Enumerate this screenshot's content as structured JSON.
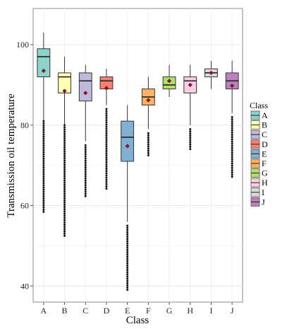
{
  "chart_data": {
    "type": "boxplot",
    "title": "",
    "xlabel": "Class",
    "ylabel": "Transmission oil temperature",
    "ylim": [
      36,
      109
    ],
    "yticks": [
      40,
      60,
      80,
      100
    ],
    "grid": true,
    "legend_title": "Class",
    "legend_position": "right",
    "categories": [
      "A",
      "B",
      "C",
      "D",
      "E",
      "F",
      "G",
      "H",
      "I",
      "J"
    ],
    "colors": [
      "#8dd3c7",
      "#ffffb3",
      "#bebada",
      "#fb8072",
      "#80b1d3",
      "#fdb462",
      "#b3de69",
      "#fccde5",
      "#d9d9d9",
      "#bc80bd"
    ],
    "mean_color": "#c0001c",
    "boxes": [
      {
        "name": "A",
        "whisker_low": 81,
        "q1": 92,
        "median": 97,
        "q3": 99,
        "whisker_high": 103,
        "mean": 93.5,
        "outliers_low": [
          58,
          81
        ]
      },
      {
        "name": "B",
        "whisker_low": 80,
        "q1": 88,
        "median": 92,
        "q3": 93,
        "whisker_high": 97,
        "mean": 88.5,
        "outliers_low": [
          52,
          80
        ]
      },
      {
        "name": "C",
        "whisker_low": 76,
        "q1": 86,
        "median": 91,
        "q3": 93,
        "whisker_high": 95,
        "mean": 88,
        "outliers_low": [
          62,
          75
        ]
      },
      {
        "name": "D",
        "whisker_low": 85,
        "q1": 89,
        "median": 91,
        "q3": 92,
        "whisker_high": 94,
        "mean": 89.2,
        "outliers_low": [
          64,
          84
        ]
      },
      {
        "name": "E",
        "whisker_low": 56,
        "q1": 71,
        "median": 77,
        "q3": 81,
        "whisker_high": 85,
        "mean": 74.8,
        "outliers_low": [
          39,
          55
        ]
      },
      {
        "name": "F",
        "whisker_low": 79,
        "q1": 85,
        "median": 87,
        "q3": 89,
        "whisker_high": 92,
        "mean": 86.2,
        "outliers_low": [
          72,
          78
        ]
      },
      {
        "name": "G",
        "whisker_low": 87,
        "q1": 89,
        "median": 90,
        "q3": 92,
        "whisker_high": 95,
        "mean": 91,
        "outliers_low": []
      },
      {
        "name": "H",
        "whisker_low": 80,
        "q1": 88,
        "median": 91,
        "q3": 92,
        "whisker_high": 95,
        "mean": 90,
        "outliers_low": [
          74,
          79
        ]
      },
      {
        "name": "I",
        "whisker_low": 89,
        "q1": 92,
        "median": 93,
        "q3": 94,
        "whisker_high": 96,
        "mean": 93,
        "outliers_low": []
      },
      {
        "name": "J",
        "whisker_low": 83,
        "q1": 89,
        "median": 91,
        "q3": 93,
        "whisker_high": 96,
        "mean": 89.8,
        "outliers_low": [
          67,
          82
        ]
      }
    ]
  }
}
